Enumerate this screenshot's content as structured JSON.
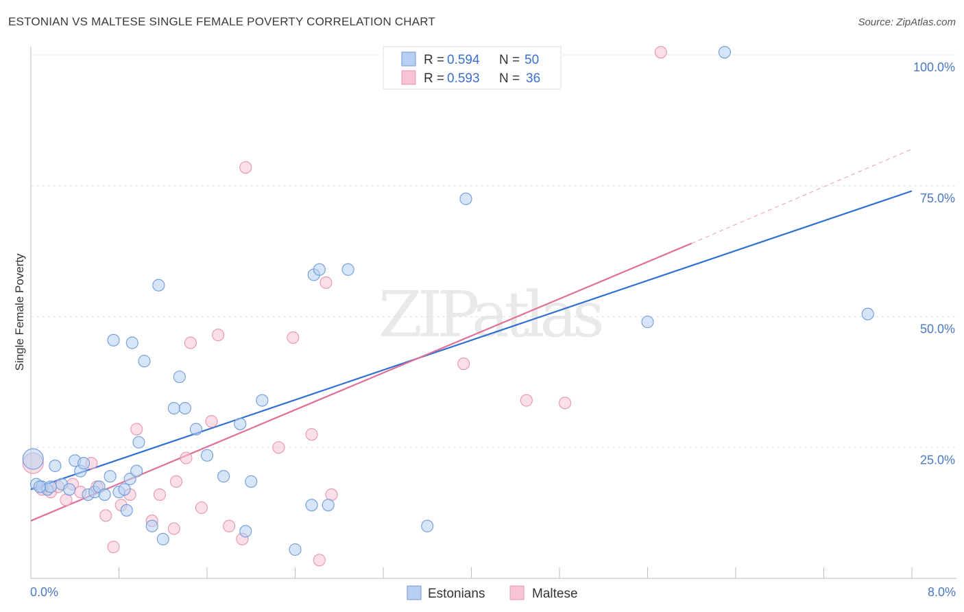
{
  "title": "ESTONIAN VS MALTESE SINGLE FEMALE POVERTY CORRELATION CHART",
  "source": "Source: ZipAtlas.com",
  "watermark": "ZIPatlas",
  "colors": {
    "blue_fill": "#b7cff2",
    "blue_stroke": "#6f9ad8",
    "blue_line": "#2f6fcf",
    "pink_fill": "#f7c4d4",
    "pink_stroke": "#e494b0",
    "pink_line": "#e06e98",
    "tick": "#4a78c4",
    "grid": "#dddddd"
  },
  "legend": {
    "rows": [
      {
        "r_label": "R =",
        "r_value": "0.594",
        "n_label": "N =",
        "n_value": "50"
      },
      {
        "r_label": "R =",
        "r_value": "0.593",
        "n_label": "N =",
        "n_value": "36"
      }
    ]
  },
  "bottom_legend": [
    "Estonians",
    "Maltese"
  ],
  "chart_data": {
    "type": "scatter",
    "title": "ESTONIAN VS MALTESE SINGLE FEMALE POVERTY CORRELATION CHART",
    "xlabel": "",
    "ylabel": "Single Female Poverty",
    "xlim": [
      0,
      8
    ],
    "ylim": [
      0,
      102
    ],
    "x_tick_labels": [
      "0.0%",
      "8.0%"
    ],
    "y_ticks": [
      25,
      50,
      75,
      100
    ],
    "y_tick_labels": [
      "25.0%",
      "50.0%",
      "75.0%",
      "100.0%"
    ],
    "grid": true,
    "legend_position": "top-center",
    "series": [
      {
        "name": "Estonians",
        "r": 0.594,
        "n": 50,
        "trend": {
          "x0": 0,
          "y0": 17,
          "x1": 8,
          "y1": 74
        },
        "points": [
          [
            0.02,
            22.8
          ],
          [
            0.05,
            18.0
          ],
          [
            0.1,
            17.5
          ],
          [
            0.15,
            17.0
          ],
          [
            0.18,
            17.5
          ],
          [
            0.22,
            21.5
          ],
          [
            0.28,
            18.0
          ],
          [
            0.35,
            17.0
          ],
          [
            0.4,
            22.5
          ],
          [
            0.45,
            20.5
          ],
          [
            0.48,
            22.0
          ],
          [
            0.52,
            16.0
          ],
          [
            0.58,
            16.5
          ],
          [
            0.62,
            17.5
          ],
          [
            0.67,
            16.0
          ],
          [
            0.72,
            19.5
          ],
          [
            0.75,
            45.5
          ],
          [
            0.8,
            16.5
          ],
          [
            0.85,
            17.0
          ],
          [
            0.87,
            13.0
          ],
          [
            0.9,
            19.0
          ],
          [
            0.92,
            45.0
          ],
          [
            0.96,
            20.5
          ],
          [
            0.98,
            26.0
          ],
          [
            1.03,
            41.5
          ],
          [
            1.1,
            10.0
          ],
          [
            1.16,
            56.0
          ],
          [
            1.2,
            7.5
          ],
          [
            1.3,
            32.5
          ],
          [
            1.35,
            38.5
          ],
          [
            1.4,
            32.5
          ],
          [
            1.5,
            28.5
          ],
          [
            1.6,
            23.5
          ],
          [
            1.75,
            19.5
          ],
          [
            1.9,
            29.5
          ],
          [
            1.95,
            9.0
          ],
          [
            2.0,
            18.5
          ],
          [
            2.1,
            34.0
          ],
          [
            2.4,
            5.5
          ],
          [
            2.55,
            14.0
          ],
          [
            2.57,
            58.0
          ],
          [
            2.62,
            59.0
          ],
          [
            2.7,
            14.0
          ],
          [
            2.88,
            59.0
          ],
          [
            3.6,
            10.0
          ],
          [
            3.95,
            72.5
          ],
          [
            5.6,
            49.0
          ],
          [
            6.3,
            100.5
          ],
          [
            7.6,
            50.5
          ],
          [
            0.08,
            17.5
          ]
        ]
      },
      {
        "name": "Maltese",
        "r": 0.593,
        "n": 36,
        "trend": {
          "x0": 0,
          "y0": 11,
          "x1": 6.0,
          "y1": 64,
          "dash_x1": 8,
          "dash_y1": 82
        },
        "points": [
          [
            0.02,
            22.0
          ],
          [
            0.1,
            17.0
          ],
          [
            0.18,
            16.5
          ],
          [
            0.25,
            17.5
          ],
          [
            0.32,
            15.0
          ],
          [
            0.38,
            18.0
          ],
          [
            0.45,
            16.5
          ],
          [
            0.55,
            22.0
          ],
          [
            0.6,
            17.5
          ],
          [
            0.68,
            12.0
          ],
          [
            0.75,
            6.0
          ],
          [
            0.82,
            14.0
          ],
          [
            0.9,
            16.0
          ],
          [
            0.96,
            28.5
          ],
          [
            1.1,
            11.0
          ],
          [
            1.17,
            16.0
          ],
          [
            1.3,
            9.5
          ],
          [
            1.32,
            18.5
          ],
          [
            1.41,
            23.0
          ],
          [
            1.45,
            45.0
          ],
          [
            1.55,
            13.5
          ],
          [
            1.64,
            30.0
          ],
          [
            1.7,
            46.5
          ],
          [
            1.8,
            10.0
          ],
          [
            1.92,
            7.5
          ],
          [
            1.95,
            78.5
          ],
          [
            2.25,
            25.0
          ],
          [
            2.38,
            46.0
          ],
          [
            2.55,
            27.5
          ],
          [
            2.62,
            3.5
          ],
          [
            2.68,
            56.5
          ],
          [
            2.73,
            16.0
          ],
          [
            3.93,
            41.0
          ],
          [
            4.5,
            34.0
          ],
          [
            4.85,
            33.5
          ],
          [
            5.72,
            100.5
          ]
        ]
      }
    ]
  }
}
